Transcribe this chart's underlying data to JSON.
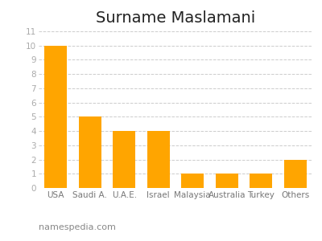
{
  "title": "Surname Maslamani",
  "categories": [
    "USA",
    "Saudi A.",
    "U.A.E.",
    "Israel",
    "Malaysia",
    "Australia",
    "Turkey",
    "Others"
  ],
  "values": [
    10.0,
    5.0,
    4.0,
    4.0,
    1.0,
    1.0,
    1.0,
    2.0
  ],
  "bar_color": "#FFA500",
  "ylim": [
    0,
    11
  ],
  "yticks": [
    0,
    1,
    2,
    3,
    4,
    5,
    6,
    7,
    8,
    9,
    10,
    11
  ],
  "grid_color": "#cccccc",
  "background_color": "#ffffff",
  "title_fontsize": 14,
  "xtick_fontsize": 7.5,
  "ytick_fontsize": 7.5,
  "watermark": "namespedia.com",
  "watermark_fontsize": 8
}
